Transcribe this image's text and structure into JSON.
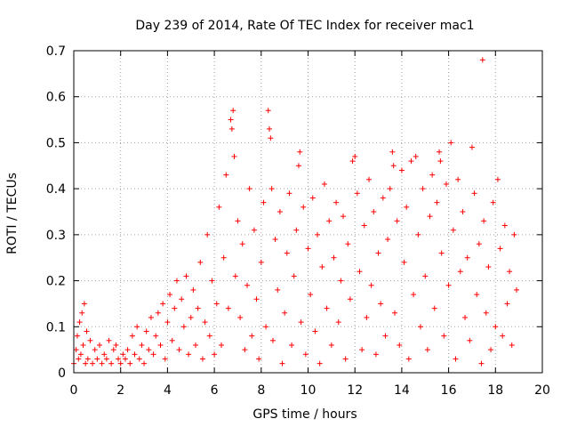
{
  "chart_data": {
    "type": "scatter",
    "title": "Day 239 of 2014, Rate Of TEC Index for receiver mac1",
    "xlabel": "GPS time / hours",
    "ylabel": "ROTI / TECUs",
    "xlim": [
      0,
      20
    ],
    "ylim": [
      0,
      0.7
    ],
    "x_ticks": [
      0,
      2,
      4,
      6,
      8,
      10,
      12,
      14,
      16,
      18,
      20
    ],
    "y_ticks": [
      0,
      0.1,
      0.2,
      0.3,
      0.4,
      0.5,
      0.6,
      0.7
    ],
    "x_tick_labels": [
      "0",
      "2",
      "4",
      "6",
      "8",
      "10",
      "12",
      "14",
      "16",
      "18",
      "20"
    ],
    "y_tick_labels": [
      "0",
      "0.1",
      "0.2",
      "0.3",
      "0.4",
      "0.5",
      "0.6",
      "0.7"
    ],
    "grid": true,
    "marker": "+",
    "color": "#ff0000",
    "series": [
      {
        "name": "mac1",
        "points": [
          [
            0.0,
            0.02
          ],
          [
            0.1,
            0.05
          ],
          [
            0.15,
            0.08
          ],
          [
            0.2,
            0.03
          ],
          [
            0.25,
            0.11
          ],
          [
            0.3,
            0.04
          ],
          [
            0.35,
            0.13
          ],
          [
            0.4,
            0.06
          ],
          [
            0.45,
            0.15
          ],
          [
            0.5,
            0.02
          ],
          [
            0.55,
            0.09
          ],
          [
            0.6,
            0.03
          ],
          [
            0.7,
            0.07
          ],
          [
            0.8,
            0.02
          ],
          [
            0.9,
            0.05
          ],
          [
            1.0,
            0.03
          ],
          [
            1.1,
            0.06
          ],
          [
            1.2,
            0.02
          ],
          [
            1.3,
            0.04
          ],
          [
            1.4,
            0.03
          ],
          [
            1.5,
            0.07
          ],
          [
            1.6,
            0.02
          ],
          [
            1.7,
            0.05
          ],
          [
            1.8,
            0.06
          ],
          [
            1.9,
            0.03
          ],
          [
            2.0,
            0.02
          ],
          [
            2.1,
            0.04
          ],
          [
            2.2,
            0.03
          ],
          [
            2.3,
            0.05
          ],
          [
            2.4,
            0.02
          ],
          [
            2.5,
            0.08
          ],
          [
            2.6,
            0.04
          ],
          [
            2.7,
            0.1
          ],
          [
            2.8,
            0.03
          ],
          [
            2.9,
            0.06
          ],
          [
            3.0,
            0.02
          ],
          [
            3.1,
            0.09
          ],
          [
            3.2,
            0.05
          ],
          [
            3.3,
            0.12
          ],
          [
            3.4,
            0.04
          ],
          [
            3.5,
            0.08
          ],
          [
            3.6,
            0.13
          ],
          [
            3.7,
            0.06
          ],
          [
            3.8,
            0.15
          ],
          [
            3.9,
            0.03
          ],
          [
            4.0,
            0.11
          ],
          [
            4.1,
            0.17
          ],
          [
            4.2,
            0.07
          ],
          [
            4.3,
            0.14
          ],
          [
            4.4,
            0.2
          ],
          [
            4.5,
            0.05
          ],
          [
            4.6,
            0.16
          ],
          [
            4.7,
            0.1
          ],
          [
            4.8,
            0.21
          ],
          [
            4.9,
            0.04
          ],
          [
            5.0,
            0.12
          ],
          [
            5.1,
            0.18
          ],
          [
            5.2,
            0.06
          ],
          [
            5.3,
            0.14
          ],
          [
            5.4,
            0.24
          ],
          [
            5.5,
            0.03
          ],
          [
            5.6,
            0.11
          ],
          [
            5.7,
            0.3
          ],
          [
            5.8,
            0.08
          ],
          [
            5.9,
            0.2
          ],
          [
            6.0,
            0.04
          ],
          [
            6.1,
            0.15
          ],
          [
            6.2,
            0.36
          ],
          [
            6.3,
            0.06
          ],
          [
            6.4,
            0.25
          ],
          [
            6.5,
            0.43
          ],
          [
            6.6,
            0.14
          ],
          [
            6.7,
            0.55
          ],
          [
            6.75,
            0.53
          ],
          [
            6.8,
            0.57
          ],
          [
            6.85,
            0.47
          ],
          [
            6.9,
            0.21
          ],
          [
            7.0,
            0.33
          ],
          [
            7.1,
            0.12
          ],
          [
            7.2,
            0.28
          ],
          [
            7.3,
            0.05
          ],
          [
            7.4,
            0.19
          ],
          [
            7.5,
            0.4
          ],
          [
            7.6,
            0.08
          ],
          [
            7.7,
            0.31
          ],
          [
            7.8,
            0.16
          ],
          [
            7.9,
            0.03
          ],
          [
            8.0,
            0.24
          ],
          [
            8.1,
            0.37
          ],
          [
            8.2,
            0.1
          ],
          [
            8.3,
            0.57
          ],
          [
            8.35,
            0.53
          ],
          [
            8.4,
            0.51
          ],
          [
            8.45,
            0.4
          ],
          [
            8.5,
            0.07
          ],
          [
            8.6,
            0.29
          ],
          [
            8.7,
            0.18
          ],
          [
            8.8,
            0.35
          ],
          [
            8.9,
            0.02
          ],
          [
            9.0,
            0.13
          ],
          [
            9.1,
            0.26
          ],
          [
            9.2,
            0.39
          ],
          [
            9.3,
            0.06
          ],
          [
            9.4,
            0.21
          ],
          [
            9.5,
            0.31
          ],
          [
            9.6,
            0.45
          ],
          [
            9.65,
            0.48
          ],
          [
            9.7,
            0.11
          ],
          [
            9.8,
            0.36
          ],
          [
            9.9,
            0.04
          ],
          [
            10.0,
            0.27
          ],
          [
            10.1,
            0.17
          ],
          [
            10.2,
            0.38
          ],
          [
            10.3,
            0.09
          ],
          [
            10.4,
            0.3
          ],
          [
            10.5,
            0.02
          ],
          [
            10.6,
            0.23
          ],
          [
            10.7,
            0.41
          ],
          [
            10.8,
            0.14
          ],
          [
            10.9,
            0.33
          ],
          [
            11.0,
            0.06
          ],
          [
            11.1,
            0.25
          ],
          [
            11.2,
            0.37
          ],
          [
            11.3,
            0.11
          ],
          [
            11.4,
            0.2
          ],
          [
            11.5,
            0.34
          ],
          [
            11.6,
            0.03
          ],
          [
            11.7,
            0.28
          ],
          [
            11.8,
            0.16
          ],
          [
            11.9,
            0.46
          ],
          [
            12.0,
            0.47
          ],
          [
            12.1,
            0.39
          ],
          [
            12.2,
            0.22
          ],
          [
            12.3,
            0.05
          ],
          [
            12.4,
            0.32
          ],
          [
            12.5,
            0.12
          ],
          [
            12.6,
            0.42
          ],
          [
            12.7,
            0.19
          ],
          [
            12.8,
            0.35
          ],
          [
            12.9,
            0.04
          ],
          [
            13.0,
            0.26
          ],
          [
            13.1,
            0.15
          ],
          [
            13.2,
            0.38
          ],
          [
            13.3,
            0.08
          ],
          [
            13.4,
            0.29
          ],
          [
            13.5,
            0.4
          ],
          [
            13.6,
            0.48
          ],
          [
            13.65,
            0.45
          ],
          [
            13.7,
            0.13
          ],
          [
            13.8,
            0.33
          ],
          [
            13.9,
            0.06
          ],
          [
            14.0,
            0.44
          ],
          [
            14.1,
            0.24
          ],
          [
            14.2,
            0.36
          ],
          [
            14.3,
            0.03
          ],
          [
            14.4,
            0.46
          ],
          [
            14.5,
            0.17
          ],
          [
            14.6,
            0.47
          ],
          [
            14.7,
            0.3
          ],
          [
            14.8,
            0.1
          ],
          [
            14.9,
            0.4
          ],
          [
            15.0,
            0.21
          ],
          [
            15.1,
            0.05
          ],
          [
            15.2,
            0.34
          ],
          [
            15.3,
            0.43
          ],
          [
            15.4,
            0.14
          ],
          [
            15.5,
            0.37
          ],
          [
            15.6,
            0.48
          ],
          [
            15.65,
            0.46
          ],
          [
            15.7,
            0.26
          ],
          [
            15.8,
            0.08
          ],
          [
            15.9,
            0.41
          ],
          [
            16.0,
            0.19
          ],
          [
            16.1,
            0.5
          ],
          [
            16.2,
            0.31
          ],
          [
            16.3,
            0.03
          ],
          [
            16.4,
            0.42
          ],
          [
            16.5,
            0.22
          ],
          [
            16.6,
            0.35
          ],
          [
            16.7,
            0.12
          ],
          [
            16.8,
            0.25
          ],
          [
            16.9,
            0.07
          ],
          [
            17.0,
            0.49
          ],
          [
            17.1,
            0.39
          ],
          [
            17.2,
            0.17
          ],
          [
            17.3,
            0.28
          ],
          [
            17.4,
            0.02
          ],
          [
            17.45,
            0.68
          ],
          [
            17.5,
            0.33
          ],
          [
            17.6,
            0.13
          ],
          [
            17.7,
            0.23
          ],
          [
            17.8,
            0.05
          ],
          [
            17.9,
            0.37
          ],
          [
            18.0,
            0.1
          ],
          [
            18.1,
            0.42
          ],
          [
            18.2,
            0.27
          ],
          [
            18.3,
            0.08
          ],
          [
            18.4,
            0.32
          ],
          [
            18.5,
            0.15
          ],
          [
            18.6,
            0.22
          ],
          [
            18.7,
            0.06
          ],
          [
            18.8,
            0.3
          ],
          [
            18.9,
            0.18
          ]
        ]
      }
    ]
  }
}
